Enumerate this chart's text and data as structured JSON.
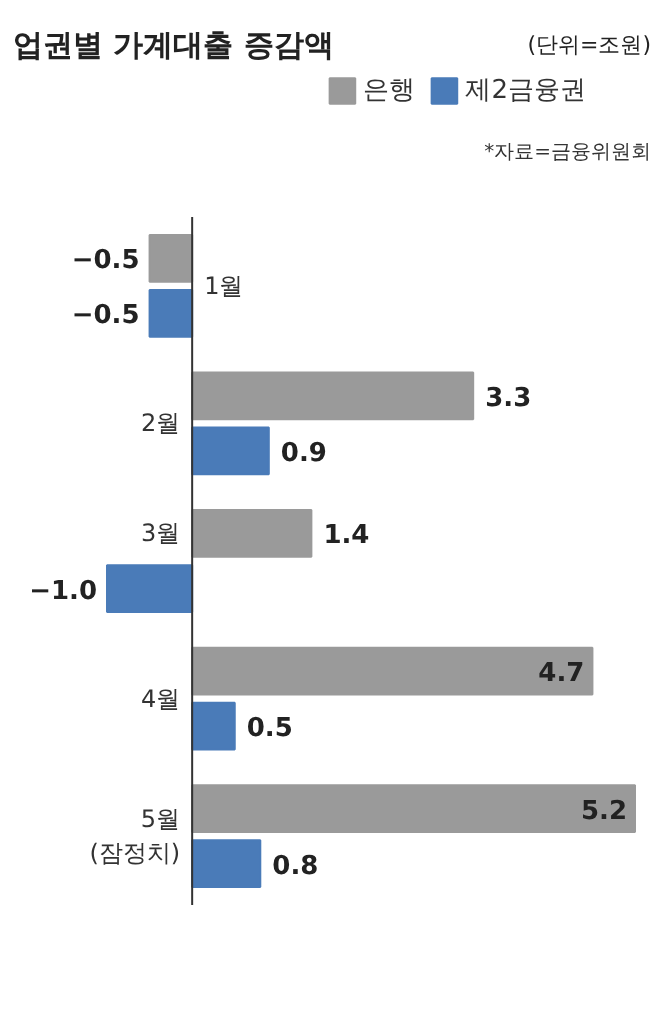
{
  "chart_data": {
    "type": "bar",
    "orientation": "horizontal",
    "title": "업권별 가계대출 증감액",
    "subtitle": "(단위=조원)",
    "categories": [
      "1월",
      "2월",
      "3월",
      "4월",
      "5월\n(잠정치)"
    ],
    "series": [
      {
        "name": "은행",
        "color": "#9a9a9a",
        "values": [
          -0.5,
          3.3,
          1.4,
          4.7,
          5.2
        ],
        "value_labels": [
          "−0.5",
          "3.3",
          "1.4",
          "4.7",
          "5.2"
        ]
      },
      {
        "name": "제2금융권",
        "color": "#4a7bb8",
        "values": [
          -0.5,
          0.9,
          -1.0,
          0.5,
          0.8
        ],
        "value_labels": [
          "−0.5",
          "0.9",
          "−1.0",
          "0.5",
          "0.8"
        ]
      }
    ],
    "legend": "top right",
    "grid": false,
    "annotations": [
      "*자료=금융위원회"
    ]
  }
}
